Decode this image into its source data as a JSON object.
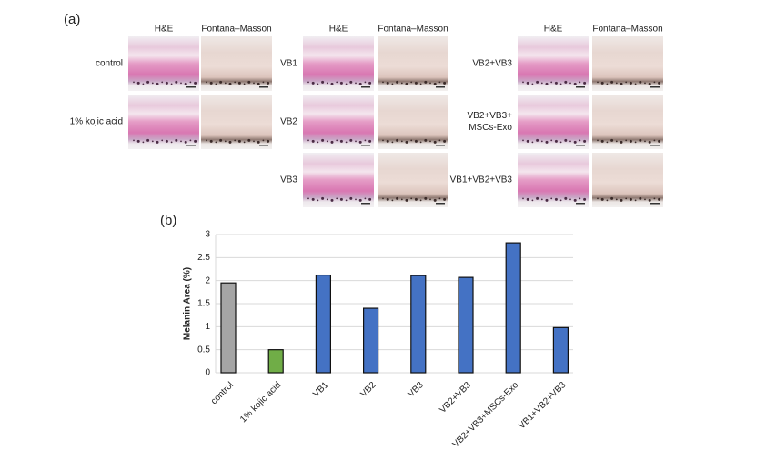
{
  "panel_a": {
    "label": "(a)",
    "groups": [
      {
        "columns": [
          "H&E",
          "Fontana–Masson"
        ],
        "rows": [
          [
            "control"
          ],
          [
            "1% kojic acid"
          ]
        ]
      },
      {
        "columns": [
          "H&E",
          "Fontana–Masson"
        ],
        "rows": [
          [
            "VB1"
          ],
          [
            "VB2"
          ],
          [
            "VB3"
          ]
        ]
      },
      {
        "columns": [
          "H&E",
          "Fontana–Masson"
        ],
        "rows": [
          [
            "VB2+VB3"
          ],
          [
            "VB2+VB3+",
            "MSCs-Exo"
          ],
          [
            "VB1+VB2+VB3"
          ]
        ]
      }
    ]
  },
  "panel_b": {
    "label": "(b)"
  },
  "chart_data": {
    "type": "bar",
    "y_label": "Melanin Area (%)",
    "categories": [
      "control",
      "1% kojic acid",
      "VB1",
      "VB2",
      "VB3",
      "VB2+VB3",
      "VB2+VB3+MSCs-Exo",
      "VB1+VB2+VB3"
    ],
    "values": [
      1.95,
      0.5,
      2.12,
      1.4,
      2.11,
      2.07,
      2.82,
      0.98
    ],
    "colors": [
      "#a5a5a5",
      "#70ad47",
      "#4472c4",
      "#4472c4",
      "#4472c4",
      "#4472c4",
      "#4472c4",
      "#4472c4"
    ],
    "ylim": [
      0,
      3
    ],
    "yticks": [
      0,
      0.5,
      1,
      1.5,
      2,
      2.5,
      3
    ],
    "grid": true
  }
}
